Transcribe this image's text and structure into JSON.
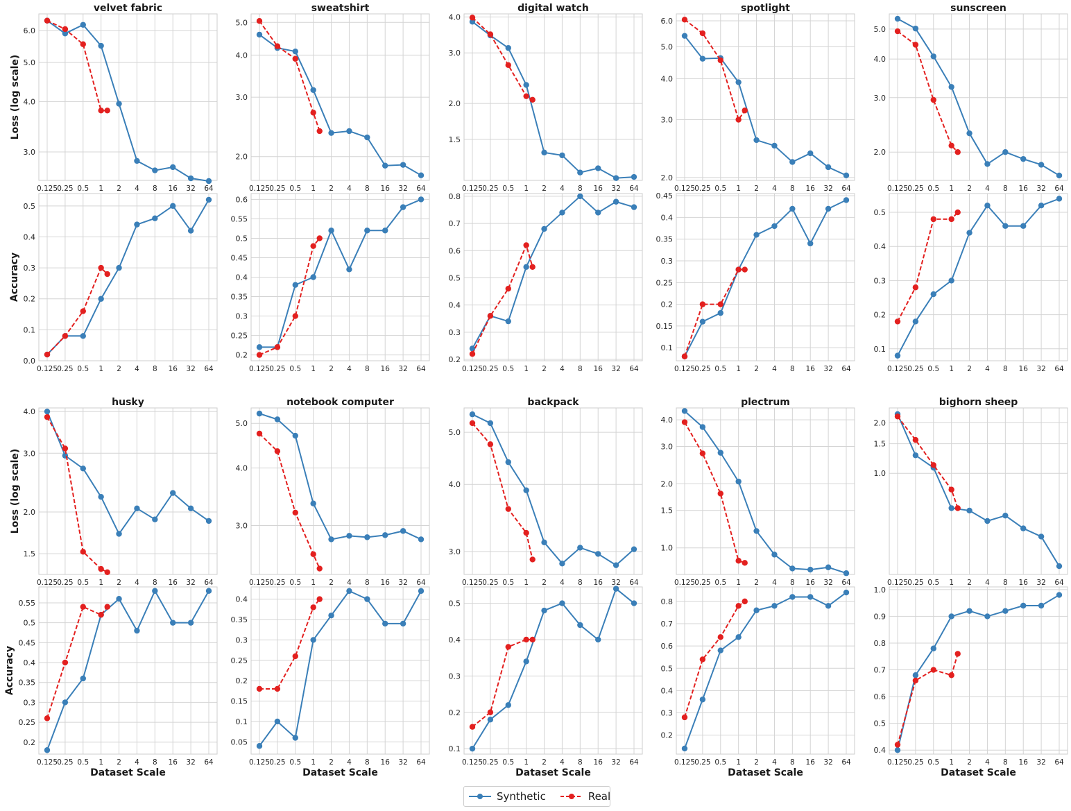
{
  "chart_data": {
    "type": "line",
    "x_scale_label": "Dataset Scale",
    "x_categories": [
      "0.125",
      "0.25",
      "0.5",
      "1",
      "2",
      "4",
      "8",
      "16",
      "32",
      "64"
    ],
    "series_names": {
      "synthetic": "Synthetic",
      "real": "Real"
    },
    "colors": {
      "synthetic": "#3a7fb8",
      "real": "#e3201f",
      "grid": "#d4d4d4",
      "frame": "#cccccc"
    },
    "row_labels": {
      "loss": "Loss (log scale)",
      "accuracy": "Accuracy"
    },
    "panels": [
      {
        "title": "velvet fabric",
        "loss": {
          "yscale": "log",
          "ylim": [
            2.55,
            6.6
          ],
          "yticks": [
            3.0,
            4.0,
            5.0,
            6.0
          ],
          "synthetic": [
            6.35,
            5.9,
            6.2,
            5.5,
            3.95,
            2.85,
            2.7,
            2.75,
            2.58,
            2.54
          ],
          "real_x": [
            0,
            1,
            2,
            3,
            3.35
          ],
          "real": [
            6.35,
            6.05,
            5.55,
            3.8,
            3.8
          ]
        },
        "accuracy": {
          "ylim": [
            0.0,
            0.54
          ],
          "yticks": [
            0.0,
            0.1,
            0.2,
            0.3,
            0.4,
            0.5
          ],
          "synthetic": [
            0.02,
            0.08,
            0.08,
            0.2,
            0.3,
            0.44,
            0.46,
            0.5,
            0.42,
            0.52
          ],
          "real_x": [
            0,
            1,
            2,
            3,
            3.35
          ],
          "real": [
            0.02,
            0.08,
            0.16,
            0.3,
            0.28
          ]
        }
      },
      {
        "title": "sweatshirt",
        "loss": {
          "yscale": "log",
          "ylim": [
            1.7,
            5.3
          ],
          "yticks": [
            2.0,
            3.0,
            4.0,
            5.0
          ],
          "synthetic": [
            4.6,
            4.2,
            4.1,
            3.15,
            2.35,
            2.38,
            2.28,
            1.88,
            1.89,
            1.76
          ],
          "real_x": [
            0,
            1,
            2,
            3,
            3.35
          ],
          "real": [
            5.05,
            4.25,
            3.9,
            2.7,
            2.38
          ]
        },
        "accuracy": {
          "ylim": [
            0.185,
            0.615
          ],
          "yticks": [
            0.2,
            0.25,
            0.3,
            0.35,
            0.4,
            0.45,
            0.5,
            0.55,
            0.6
          ],
          "synthetic": [
            0.22,
            0.22,
            0.38,
            0.4,
            0.52,
            0.42,
            0.52,
            0.52,
            0.58,
            0.6
          ],
          "real_x": [
            0,
            1,
            2,
            3,
            3.35
          ],
          "real": [
            0.2,
            0.22,
            0.3,
            0.48,
            0.5
          ]
        }
      },
      {
        "title": "digital watch",
        "loss": {
          "yscale": "log",
          "ylim": [
            1.08,
            4.1
          ],
          "yticks": [
            1.5,
            2.0,
            3.0,
            4.0
          ],
          "synthetic": [
            3.85,
            3.45,
            3.12,
            2.32,
            1.35,
            1.32,
            1.15,
            1.19,
            1.1,
            1.11
          ],
          "real_x": [
            0,
            1,
            2,
            3,
            3.35
          ],
          "real": [
            3.98,
            3.48,
            2.72,
            2.12,
            2.06
          ]
        },
        "accuracy": {
          "ylim": [
            0.195,
            0.81
          ],
          "yticks": [
            0.2,
            0.3,
            0.4,
            0.5,
            0.6,
            0.7,
            0.8
          ],
          "synthetic": [
            0.24,
            0.36,
            0.34,
            0.54,
            0.68,
            0.74,
            0.8,
            0.74,
            0.78,
            0.76
          ],
          "real_x": [
            0,
            1,
            2,
            3,
            3.35
          ],
          "real": [
            0.22,
            0.36,
            0.46,
            0.62,
            0.54
          ]
        }
      },
      {
        "title": "spotlight",
        "loss": {
          "yscale": "log",
          "ylim": [
            1.96,
            6.3
          ],
          "yticks": [
            2.0,
            3.0,
            4.0,
            5.0,
            6.0
          ],
          "synthetic": [
            5.4,
            4.6,
            4.62,
            3.9,
            2.6,
            2.5,
            2.23,
            2.37,
            2.15,
            2.03
          ],
          "real_x": [
            0,
            1,
            2,
            3,
            3.35
          ],
          "real": [
            6.05,
            5.5,
            4.55,
            3.0,
            3.2
          ]
        },
        "accuracy": {
          "ylim": [
            0.07,
            0.455
          ],
          "yticks": [
            0.1,
            0.15,
            0.2,
            0.25,
            0.3,
            0.35,
            0.4,
            0.45
          ],
          "synthetic": [
            0.08,
            0.16,
            0.18,
            0.28,
            0.36,
            0.38,
            0.42,
            0.34,
            0.42,
            0.44
          ],
          "real_x": [
            0,
            1,
            2,
            3,
            3.35
          ],
          "real": [
            0.08,
            0.2,
            0.2,
            0.28,
            0.28
          ]
        }
      },
      {
        "title": "sunscreen",
        "loss": {
          "yscale": "log",
          "ylim": [
            1.62,
            5.6
          ],
          "yticks": [
            2.0,
            3.0,
            4.0,
            5.0
          ],
          "synthetic": [
            5.4,
            5.02,
            4.08,
            3.25,
            2.3,
            1.83,
            2.0,
            1.9,
            1.82,
            1.68
          ],
          "real_x": [
            0,
            1,
            2,
            3,
            3.35
          ],
          "real": [
            4.92,
            4.45,
            2.95,
            2.1,
            2.0
          ]
        },
        "accuracy": {
          "ylim": [
            0.065,
            0.555
          ],
          "yticks": [
            0.1,
            0.2,
            0.3,
            0.4,
            0.5
          ],
          "synthetic": [
            0.08,
            0.18,
            0.26,
            0.3,
            0.44,
            0.52,
            0.46,
            0.46,
            0.52,
            0.54
          ],
          "real_x": [
            0,
            1,
            2,
            3,
            3.35
          ],
          "real": [
            0.18,
            0.28,
            0.48,
            0.48,
            0.5
          ]
        }
      },
      {
        "title": "husky",
        "loss": {
          "yscale": "log",
          "ylim": [
            1.3,
            4.1
          ],
          "yticks": [
            1.5,
            2.0,
            3.0,
            4.0
          ],
          "synthetic": [
            4.0,
            2.95,
            2.7,
            2.22,
            1.72,
            2.05,
            1.9,
            2.28,
            2.05,
            1.88
          ],
          "real_x": [
            0,
            1,
            2,
            3,
            3.35
          ],
          "real": [
            3.85,
            3.1,
            1.52,
            1.35,
            1.32
          ]
        },
        "accuracy": {
          "ylim": [
            0.17,
            0.59
          ],
          "yticks": [
            0.2,
            0.25,
            0.3,
            0.35,
            0.4,
            0.45,
            0.5,
            0.55
          ],
          "synthetic": [
            0.18,
            0.3,
            0.36,
            0.52,
            0.56,
            0.48,
            0.58,
            0.5,
            0.5,
            0.58
          ],
          "real_x": [
            0,
            1,
            2,
            3,
            3.35
          ],
          "real": [
            0.26,
            0.4,
            0.54,
            0.52,
            0.54
          ]
        }
      },
      {
        "title": "notebook computer",
        "loss": {
          "yscale": "log",
          "ylim": [
            2.35,
            5.4
          ],
          "yticks": [
            3.0,
            4.0,
            5.0
          ],
          "synthetic": [
            5.25,
            5.1,
            4.7,
            3.35,
            2.8,
            2.85,
            2.83,
            2.86,
            2.92,
            2.8
          ],
          "real_x": [
            0,
            1,
            2,
            3,
            3.35
          ],
          "real": [
            4.75,
            4.35,
            3.2,
            2.6,
            2.42
          ]
        },
        "accuracy": {
          "ylim": [
            0.02,
            0.43
          ],
          "yticks": [
            0.05,
            0.1,
            0.15,
            0.2,
            0.25,
            0.3,
            0.35,
            0.4
          ],
          "synthetic": [
            0.04,
            0.1,
            0.06,
            0.3,
            0.36,
            0.42,
            0.4,
            0.34,
            0.34,
            0.42
          ],
          "real_x": [
            0,
            1,
            2,
            3,
            3.35
          ],
          "real": [
            0.18,
            0.18,
            0.26,
            0.38,
            0.4
          ]
        }
      },
      {
        "title": "backpack",
        "loss": {
          "yscale": "log",
          "ylim": [
            2.72,
            5.55
          ],
          "yticks": [
            3.0,
            4.0,
            5.0
          ],
          "synthetic": [
            5.4,
            5.2,
            4.4,
            3.9,
            3.12,
            2.85,
            3.05,
            2.97,
            2.83,
            3.03
          ],
          "real_x": [
            0,
            1,
            2,
            3,
            3.35
          ],
          "real": [
            5.2,
            4.75,
            3.6,
            3.25,
            2.9
          ]
        },
        "accuracy": {
          "ylim": [
            0.085,
            0.545
          ],
          "yticks": [
            0.1,
            0.2,
            0.3,
            0.4,
            0.5
          ],
          "synthetic": [
            0.1,
            0.18,
            0.22,
            0.34,
            0.48,
            0.5,
            0.44,
            0.4,
            0.54,
            0.5
          ],
          "real_x": [
            0,
            1,
            2,
            3,
            3.35
          ],
          "real": [
            0.16,
            0.2,
            0.38,
            0.4,
            0.4
          ]
        }
      },
      {
        "title": "plectrum",
        "loss": {
          "yscale": "log",
          "ylim": [
            0.75,
            4.55
          ],
          "yticks": [
            1.0,
            1.5,
            2.0,
            3.0,
            4.0
          ],
          "synthetic": [
            4.4,
            3.7,
            2.8,
            2.05,
            1.2,
            0.93,
            0.8,
            0.79,
            0.81,
            0.76
          ],
          "real_x": [
            0,
            1,
            2,
            3,
            3.35
          ],
          "real": [
            3.9,
            2.78,
            1.8,
            0.87,
            0.85
          ]
        },
        "accuracy": {
          "ylim": [
            0.115,
            0.865
          ],
          "yticks": [
            0.2,
            0.3,
            0.4,
            0.5,
            0.6,
            0.7,
            0.8
          ],
          "synthetic": [
            0.14,
            0.36,
            0.58,
            0.64,
            0.76,
            0.78,
            0.82,
            0.82,
            0.78,
            0.84
          ],
          "real_x": [
            0,
            1,
            2,
            3,
            3.35
          ],
          "real": [
            0.28,
            0.54,
            0.64,
            0.78,
            0.8
          ]
        }
      },
      {
        "title": "bighorn sheep",
        "loss": {
          "yscale": "log",
          "ylim": [
            0.25,
            2.45
          ],
          "yticks": [
            1.0,
            1.5,
            2.0
          ],
          "synthetic": [
            2.25,
            1.28,
            1.08,
            0.62,
            0.6,
            0.52,
            0.56,
            0.47,
            0.42,
            0.28
          ],
          "real_x": [
            0,
            1,
            2,
            3,
            3.35
          ],
          "real": [
            2.18,
            1.58,
            1.12,
            0.8,
            0.62
          ]
        },
        "accuracy": {
          "ylim": [
            0.385,
            1.01
          ],
          "yticks": [
            0.4,
            0.5,
            0.6,
            0.7,
            0.8,
            0.9,
            1.0
          ],
          "synthetic": [
            0.4,
            0.68,
            0.78,
            0.9,
            0.92,
            0.9,
            0.92,
            0.94,
            0.94,
            0.98
          ],
          "real_x": [
            0,
            1,
            2,
            3,
            3.35
          ],
          "real": [
            0.42,
            0.66,
            0.7,
            0.68,
            0.76
          ]
        }
      }
    ]
  }
}
